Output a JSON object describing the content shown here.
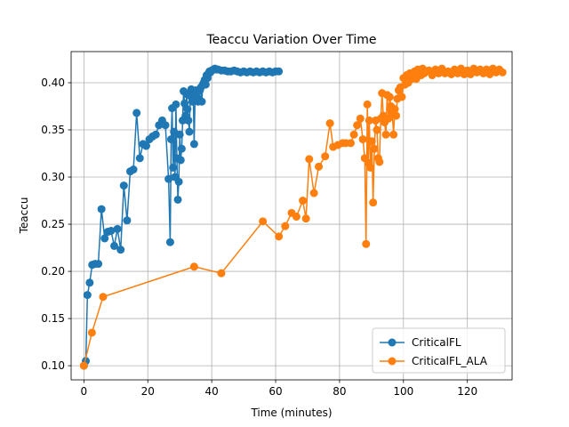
{
  "chart_data": {
    "type": "line",
    "title": "Teaccu Variation Over Time",
    "xlabel": "Time (minutes)",
    "ylabel": "Teaccu",
    "xlim": [
      -4,
      134
    ],
    "ylim": [
      0.085,
      0.433
    ],
    "xticks": [
      0,
      20,
      40,
      60,
      80,
      100,
      120
    ],
    "xtick_labels": [
      "0",
      "20",
      "40",
      "60",
      "80",
      "100",
      "120"
    ],
    "yticks": [
      0.1,
      0.15,
      0.2,
      0.25,
      0.3,
      0.35,
      0.4
    ],
    "ytick_labels": [
      "0.10",
      "0.15",
      "0.20",
      "0.25",
      "0.30",
      "0.35",
      "0.40"
    ],
    "grid": true,
    "legend_position": "bottom-right",
    "series": [
      {
        "name": "CriticalFL",
        "color": "#1f77b4",
        "x": [
          0,
          0.6,
          1.1,
          1.8,
          2.6,
          3.5,
          4.5,
          5.5,
          6.5,
          7.5,
          8.5,
          9.5,
          10.5,
          11.5,
          12.5,
          13.5,
          14.5,
          15.5,
          16.5,
          17.5,
          18.5,
          19.5,
          20.5,
          21.5,
          22.5,
          23.5,
          24.5,
          25.5,
          26.5,
          27,
          27.3,
          27.6,
          27.9,
          28.2,
          28.5,
          28.8,
          29.1,
          29.4,
          29.7,
          30,
          30.3,
          30.6,
          30.9,
          31.2,
          31.5,
          31.8,
          32.1,
          32.4,
          32.7,
          33,
          33.3,
          33.6,
          33.9,
          34.2,
          34.5,
          34.8,
          35.1,
          35.4,
          35.7,
          36,
          36.3,
          36.6,
          36.9,
          37.2,
          37.5,
          37.8,
          38.1,
          38.4,
          38.7,
          39,
          39.3,
          39.6,
          40,
          40.5,
          41,
          41.5,
          42,
          43,
          44,
          45,
          46,
          47,
          48,
          49,
          50,
          51,
          52,
          53,
          54,
          55,
          56,
          57,
          58,
          59,
          60,
          61
        ],
        "y": [
          0.1,
          0.105,
          0.175,
          0.188,
          0.207,
          0.208,
          0.208,
          0.266,
          0.235,
          0.242,
          0.243,
          0.227,
          0.245,
          0.223,
          0.291,
          0.254,
          0.306,
          0.308,
          0.368,
          0.32,
          0.335,
          0.333,
          0.34,
          0.343,
          0.345,
          0.355,
          0.36,
          0.355,
          0.298,
          0.231,
          0.34,
          0.373,
          0.31,
          0.348,
          0.3,
          0.377,
          0.32,
          0.276,
          0.295,
          0.345,
          0.318,
          0.33,
          0.36,
          0.391,
          0.378,
          0.365,
          0.388,
          0.372,
          0.36,
          0.348,
          0.386,
          0.393,
          0.38,
          0.39,
          0.335,
          0.389,
          0.392,
          0.385,
          0.38,
          0.381,
          0.392,
          0.395,
          0.38,
          0.398,
          0.4,
          0.403,
          0.398,
          0.408,
          0.405,
          0.41,
          0.412,
          0.411,
          0.413,
          0.414,
          0.415,
          0.414,
          0.414,
          0.413,
          0.413,
          0.412,
          0.412,
          0.413,
          0.412,
          0.411,
          0.412,
          0.411,
          0.412,
          0.411,
          0.412,
          0.411,
          0.412,
          0.411,
          0.412,
          0.411,
          0.412,
          0.412
        ]
      },
      {
        "name": "CriticalFL_ALA",
        "color": "#ff7f0e",
        "x": [
          0,
          2.5,
          6,
          34.5,
          43,
          56,
          61,
          63,
          65,
          66.5,
          68.5,
          69.5,
          70.5,
          72,
          73.5,
          75.5,
          77,
          78,
          79.5,
          81,
          82,
          83.5,
          84.5,
          85.5,
          86.5,
          87.3,
          87.9,
          88.3,
          88.7,
          89,
          89.3,
          89.7,
          90.1,
          90.5,
          90.9,
          91.3,
          91.7,
          92.1,
          92.5,
          92.9,
          93.3,
          93.7,
          94.1,
          94.5,
          94.9,
          95.3,
          95.7,
          96.1,
          96.5,
          96.9,
          97.3,
          97.7,
          98.1,
          98.5,
          99,
          99.5,
          100,
          100.5,
          101,
          101.5,
          102,
          102.5,
          103,
          103.5,
          104,
          104.5,
          105,
          105.5,
          106,
          106.5,
          107,
          108,
          109,
          110,
          111,
          112,
          113,
          114,
          115,
          116,
          117,
          118,
          119,
          120,
          121,
          122,
          123,
          124,
          125,
          126,
          127,
          128,
          129,
          130,
          131
        ],
        "y": [
          0.1,
          0.135,
          0.173,
          0.205,
          0.198,
          0.253,
          0.237,
          0.248,
          0.262,
          0.258,
          0.275,
          0.256,
          0.319,
          0.283,
          0.311,
          0.322,
          0.357,
          0.332,
          0.334,
          0.336,
          0.336,
          0.336,
          0.345,
          0.355,
          0.362,
          0.34,
          0.32,
          0.229,
          0.377,
          0.315,
          0.36,
          0.31,
          0.338,
          0.273,
          0.33,
          0.36,
          0.35,
          0.32,
          0.316,
          0.362,
          0.389,
          0.365,
          0.358,
          0.345,
          0.387,
          0.362,
          0.385,
          0.375,
          0.368,
          0.345,
          0.372,
          0.365,
          0.383,
          0.392,
          0.395,
          0.385,
          0.405,
          0.398,
          0.408,
          0.4,
          0.41,
          0.404,
          0.408,
          0.412,
          0.404,
          0.414,
          0.41,
          0.408,
          0.415,
          0.41,
          0.412,
          0.413,
          0.408,
          0.414,
          0.41,
          0.415,
          0.41,
          0.412,
          0.409,
          0.414,
          0.41,
          0.415,
          0.409,
          0.413,
          0.409,
          0.415,
          0.411,
          0.414,
          0.41,
          0.414,
          0.409,
          0.415,
          0.411,
          0.414,
          0.411
        ]
      }
    ]
  }
}
